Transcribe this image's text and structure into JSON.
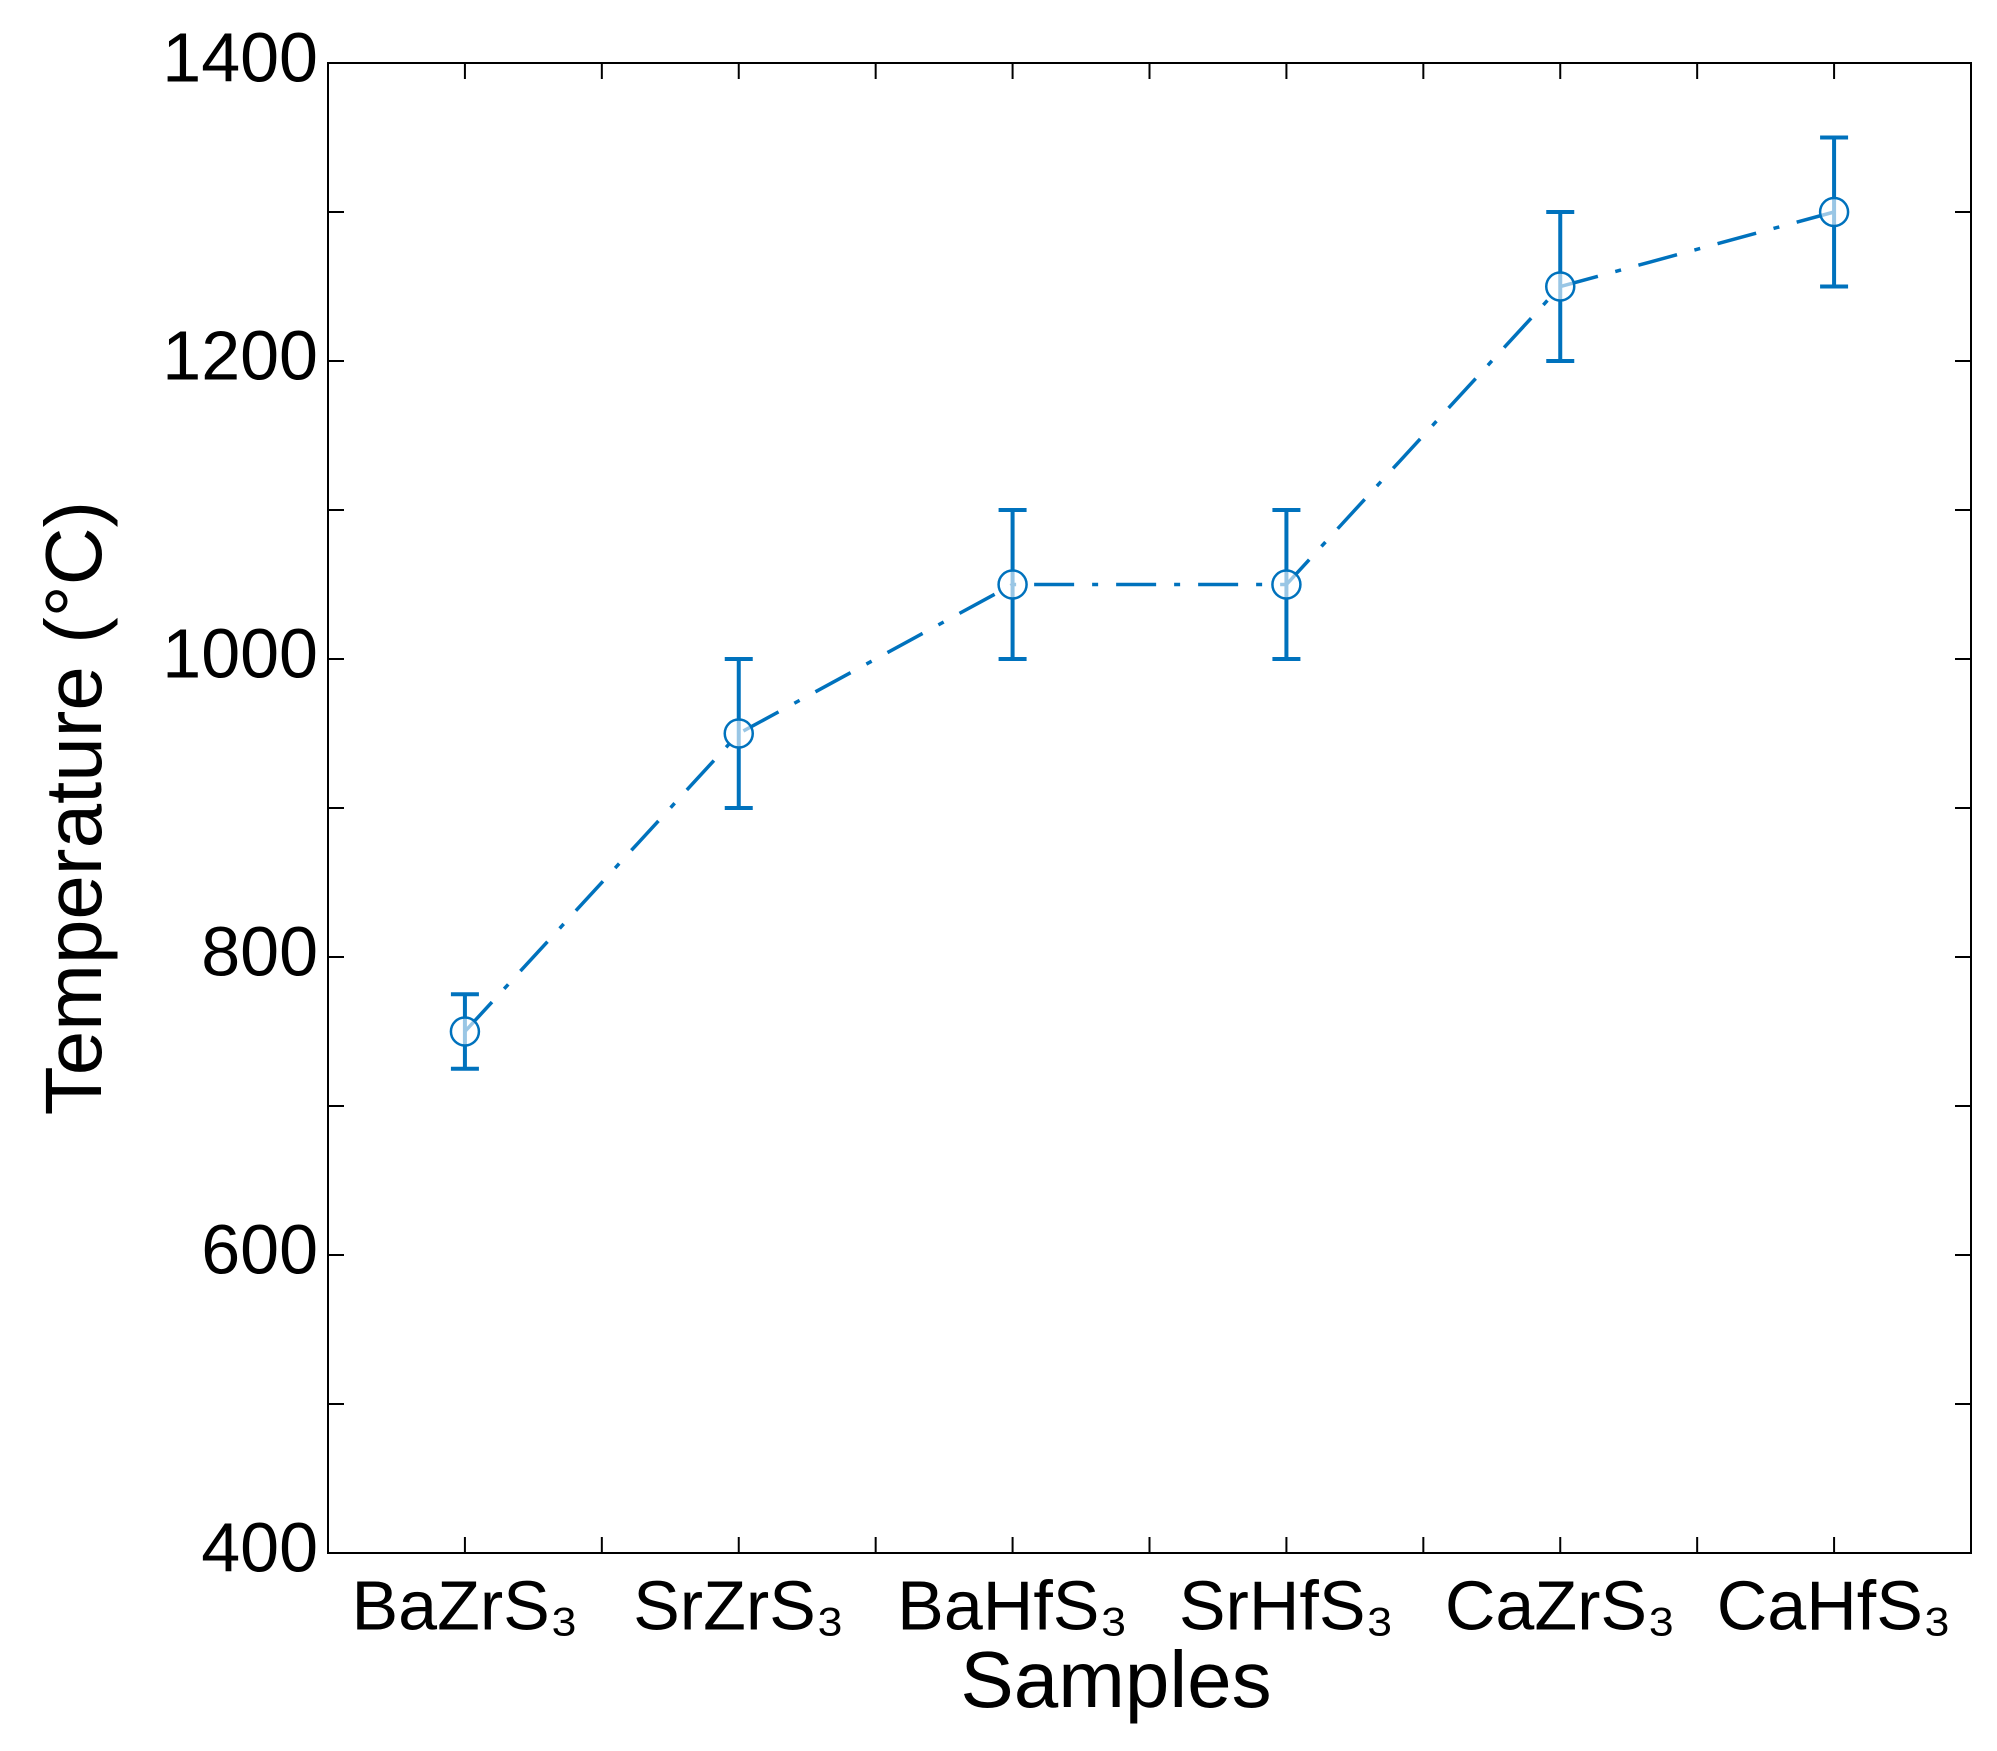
{
  "chart_data": {
    "type": "line",
    "x_label": "Samples",
    "y_label": "Temperature (°C)",
    "categories": [
      "BaZrS₃",
      "SrZrS₃",
      "BaHfS₃",
      "SrHfS₃",
      "CaZrS₃",
      "CaHfS₃"
    ],
    "series": [
      {
        "color": "#0072bd",
        "values": [
          750,
          950,
          1050,
          1050,
          1250,
          1300
        ],
        "errors": [
          25,
          50,
          50,
          50,
          50,
          50
        ]
      }
    ],
    "ylim": [
      400,
      1400
    ],
    "yticks": [
      400,
      600,
      800,
      1000,
      1200,
      1400
    ],
    "line_style": "dashdot",
    "marker": "circle"
  }
}
